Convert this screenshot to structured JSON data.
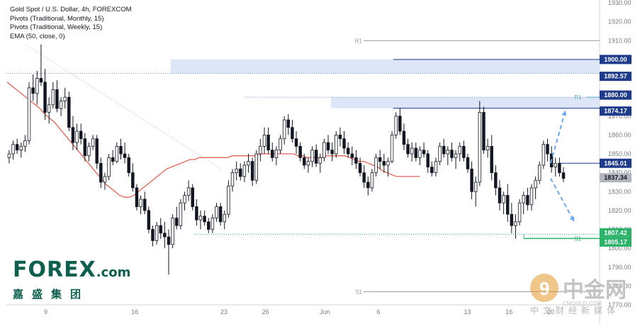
{
  "legend": {
    "symbol": "Gold Spot / U.S. Dollar, 4h, FOREXCOM",
    "pivots_monthly": "Pivots (Traditional, Monthly, 15)",
    "pivots_weekly": "Pivots (Traditional, Weekly, 15)",
    "ema": "EMA (50, close, 0)"
  },
  "logo": {
    "main": "FOREX",
    "suffix": ".com",
    "sub": "嘉盛集团"
  },
  "watermark": {
    "main": "中金网",
    "url": "CNGOLD.COM",
    "sub": "中文财经新媒体",
    "icon": "coin-icon"
  },
  "colors": {
    "up_candle": "#ffffff",
    "down_candle": "#131722",
    "ema": "#e0625a",
    "resistance": "#1e3a8a",
    "zone_fill": "#dde6f7",
    "support": "#2bb36a",
    "forecast_arrow": "#6ea8f0",
    "last_price": "#b2b5be",
    "pivot": "#9a9a9a"
  },
  "chart_data": {
    "type": "candlestick",
    "title": "Gold Spot / U.S. Dollar, 4h, FOREXCOM",
    "ylim": [
      1770,
      1930
    ],
    "y_ticks": [
      1930,
      1920,
      1910,
      1900,
      1890,
      1880,
      1870,
      1860,
      1850,
      1840,
      1830,
      1820,
      1810,
      1800,
      1790,
      1780,
      1770
    ],
    "x_tick_labels": [
      {
        "label": "9",
        "bar": 13
      },
      {
        "label": "16",
        "bar": 43
      },
      {
        "label": "23",
        "bar": 73
      },
      {
        "label": "26",
        "bar": 87
      },
      {
        "label": "Jun",
        "bar": 107
      },
      {
        "label": "6",
        "bar": 125
      },
      {
        "label": "13",
        "bar": 155
      },
      {
        "label": "16",
        "bar": 169
      },
      {
        "label": "20",
        "bar": 183
      }
    ],
    "bars_total": 200,
    "candles": [
      [
        1848,
        1852,
        1845,
        1850
      ],
      [
        1850,
        1857,
        1847,
        1855
      ],
      [
        1855,
        1858,
        1850,
        1852
      ],
      [
        1852,
        1856,
        1848,
        1854
      ],
      [
        1854,
        1860,
        1851,
        1857
      ],
      [
        1857,
        1888,
        1855,
        1885
      ],
      [
        1885,
        1892,
        1878,
        1882
      ],
      [
        1882,
        1894,
        1876,
        1890
      ],
      [
        1890,
        1908,
        1886,
        1888
      ],
      [
        1888,
        1895,
        1868,
        1872
      ],
      [
        1872,
        1880,
        1866,
        1876
      ],
      [
        1876,
        1888,
        1874,
        1884
      ],
      [
        1884,
        1889,
        1872,
        1874
      ],
      [
        1874,
        1880,
        1870,
        1878
      ],
      [
        1878,
        1885,
        1874,
        1880
      ],
      [
        1880,
        1883,
        1862,
        1864
      ],
      [
        1864,
        1870,
        1852,
        1856
      ],
      [
        1856,
        1866,
        1852,
        1862
      ],
      [
        1862,
        1866,
        1855,
        1858
      ],
      [
        1858,
        1861,
        1846,
        1849
      ],
      [
        1849,
        1856,
        1846,
        1854
      ],
      [
        1854,
        1860,
        1852,
        1858
      ],
      [
        1858,
        1860,
        1842,
        1845
      ],
      [
        1845,
        1848,
        1832,
        1835
      ],
      [
        1835,
        1840,
        1831,
        1838
      ],
      [
        1838,
        1850,
        1836,
        1848
      ],
      [
        1848,
        1852,
        1844,
        1846
      ],
      [
        1846,
        1856,
        1845,
        1854
      ],
      [
        1854,
        1858,
        1847,
        1850
      ],
      [
        1850,
        1856,
        1845,
        1848
      ],
      [
        1848,
        1850,
        1838,
        1840
      ],
      [
        1840,
        1845,
        1830,
        1832
      ],
      [
        1832,
        1834,
        1820,
        1822
      ],
      [
        1822,
        1828,
        1818,
        1826
      ],
      [
        1826,
        1830,
        1818,
        1820
      ],
      [
        1820,
        1822,
        1808,
        1810
      ],
      [
        1810,
        1812,
        1801,
        1804
      ],
      [
        1804,
        1814,
        1802,
        1812
      ],
      [
        1812,
        1816,
        1805,
        1808
      ],
      [
        1808,
        1814,
        1800,
        1806
      ],
      [
        1806,
        1810,
        1786,
        1802
      ],
      [
        1802,
        1818,
        1800,
        1816
      ],
      [
        1816,
        1822,
        1810,
        1812
      ],
      [
        1812,
        1826,
        1810,
        1824
      ],
      [
        1824,
        1830,
        1820,
        1828
      ],
      [
        1828,
        1836,
        1825,
        1832
      ],
      [
        1832,
        1834,
        1820,
        1822
      ],
      [
        1822,
        1826,
        1812,
        1815
      ],
      [
        1815,
        1820,
        1810,
        1817
      ],
      [
        1817,
        1820,
        1812,
        1814
      ],
      [
        1814,
        1816,
        1808,
        1810
      ],
      [
        1810,
        1818,
        1808,
        1816
      ],
      [
        1816,
        1824,
        1814,
        1822
      ],
      [
        1822,
        1824,
        1812,
        1814
      ],
      [
        1814,
        1820,
        1810,
        1818
      ],
      [
        1818,
        1836,
        1816,
        1833
      ],
      [
        1833,
        1842,
        1830,
        1840
      ],
      [
        1840,
        1846,
        1836,
        1842
      ],
      [
        1842,
        1845,
        1836,
        1838
      ],
      [
        1838,
        1846,
        1835,
        1844
      ],
      [
        1844,
        1850,
        1840,
        1846
      ],
      [
        1846,
        1848,
        1833,
        1836
      ],
      [
        1836,
        1852,
        1834,
        1850
      ],
      [
        1850,
        1858,
        1846,
        1854
      ],
      [
        1854,
        1864,
        1850,
        1860
      ],
      [
        1860,
        1864,
        1850,
        1852
      ],
      [
        1852,
        1856,
        1846,
        1848
      ],
      [
        1848,
        1854,
        1844,
        1852
      ],
      [
        1852,
        1860,
        1850,
        1858
      ],
      [
        1858,
        1870,
        1855,
        1868
      ],
      [
        1868,
        1871,
        1860,
        1864
      ],
      [
        1864,
        1868,
        1856,
        1858
      ],
      [
        1858,
        1862,
        1850,
        1854
      ],
      [
        1854,
        1856,
        1846,
        1848
      ],
      [
        1848,
        1850,
        1842,
        1844
      ],
      [
        1844,
        1848,
        1840,
        1846
      ],
      [
        1846,
        1854,
        1843,
        1852
      ],
      [
        1852,
        1855,
        1843,
        1845
      ],
      [
        1845,
        1850,
        1840,
        1848
      ],
      [
        1848,
        1858,
        1846,
        1856
      ],
      [
        1856,
        1860,
        1850,
        1852
      ],
      [
        1852,
        1856,
        1846,
        1850
      ],
      [
        1850,
        1862,
        1848,
        1860
      ],
      [
        1860,
        1864,
        1854,
        1858
      ],
      [
        1858,
        1862,
        1850,
        1853
      ],
      [
        1853,
        1856,
        1848,
        1850
      ],
      [
        1850,
        1854,
        1844,
        1848
      ],
      [
        1848,
        1852,
        1842,
        1845
      ],
      [
        1845,
        1848,
        1838,
        1840
      ],
      [
        1840,
        1844,
        1832,
        1835
      ],
      [
        1835,
        1838,
        1828,
        1832
      ],
      [
        1832,
        1842,
        1830,
        1840
      ],
      [
        1840,
        1850,
        1838,
        1848
      ],
      [
        1848,
        1852,
        1842,
        1846
      ],
      [
        1846,
        1850,
        1840,
        1844
      ],
      [
        1844,
        1848,
        1838,
        1846
      ],
      [
        1846,
        1862,
        1845,
        1860
      ],
      [
        1860,
        1872,
        1858,
        1870
      ],
      [
        1870,
        1874,
        1860,
        1862
      ],
      [
        1862,
        1866,
        1852,
        1855
      ],
      [
        1855,
        1858,
        1848,
        1850
      ],
      [
        1850,
        1856,
        1846,
        1853
      ],
      [
        1853,
        1856,
        1846,
        1848
      ],
      [
        1848,
        1854,
        1844,
        1852
      ],
      [
        1852,
        1856,
        1848,
        1850
      ],
      [
        1850,
        1852,
        1840,
        1843
      ],
      [
        1843,
        1846,
        1838,
        1840
      ],
      [
        1840,
        1848,
        1838,
        1846
      ],
      [
        1846,
        1856,
        1844,
        1854
      ],
      [
        1854,
        1858,
        1848,
        1850
      ],
      [
        1850,
        1854,
        1844,
        1852
      ],
      [
        1852,
        1856,
        1846,
        1848
      ],
      [
        1848,
        1852,
        1842,
        1850
      ],
      [
        1850,
        1856,
        1846,
        1854
      ],
      [
        1854,
        1857,
        1846,
        1848
      ],
      [
        1848,
        1850,
        1840,
        1842
      ],
      [
        1842,
        1846,
        1826,
        1830
      ],
      [
        1830,
        1838,
        1822,
        1835
      ],
      [
        1835,
        1878,
        1833,
        1872
      ],
      [
        1872,
        1875,
        1850,
        1852
      ],
      [
        1852,
        1858,
        1848,
        1854
      ],
      [
        1854,
        1860,
        1836,
        1840
      ],
      [
        1840,
        1844,
        1828,
        1832
      ],
      [
        1832,
        1836,
        1820,
        1824
      ],
      [
        1824,
        1830,
        1818,
        1828
      ],
      [
        1828,
        1834,
        1814,
        1818
      ],
      [
        1818,
        1824,
        1808,
        1812
      ],
      [
        1812,
        1818,
        1805,
        1814
      ],
      [
        1814,
        1826,
        1812,
        1824
      ],
      [
        1824,
        1830,
        1818,
        1828
      ],
      [
        1828,
        1832,
        1820,
        1823
      ],
      [
        1823,
        1834,
        1820,
        1832
      ],
      [
        1832,
        1838,
        1826,
        1836
      ],
      [
        1836,
        1846,
        1834,
        1844
      ],
      [
        1844,
        1857,
        1842,
        1855
      ],
      [
        1855,
        1858,
        1846,
        1850
      ],
      [
        1850,
        1854,
        1840,
        1843
      ],
      [
        1843,
        1848,
        1838,
        1845
      ],
      [
        1845,
        1848,
        1838,
        1840
      ],
      [
        1840,
        1843,
        1835,
        1837
      ]
    ],
    "ema_50": [
      1888,
      1886,
      1884,
      1882,
      1880,
      1878,
      1876,
      1874,
      1871,
      1869,
      1867,
      1864,
      1861,
      1858,
      1855,
      1852,
      1849,
      1846,
      1843,
      1840,
      1837,
      1834,
      1832,
      1830,
      1828,
      1827,
      1827,
      1828,
      1830,
      1832,
      1834,
      1836,
      1838,
      1840,
      1842,
      1843,
      1844,
      1845,
      1846,
      1847,
      1847,
      1848,
      1848,
      1848,
      1848,
      1848,
      1848,
      1848,
      1849,
      1849,
      1849,
      1849,
      1849,
      1849,
      1850,
      1850,
      1850,
      1850,
      1850,
      1850,
      1850,
      1850,
      1849,
      1849,
      1848,
      1848,
      1848,
      1848,
      1849,
      1849,
      1849,
      1849,
      1849,
      1848,
      1847,
      1846,
      1846,
      1845,
      1844,
      1843,
      1841,
      1840,
      1839,
      1838,
      1838,
      1838,
      1838,
      1838,
      1838
    ],
    "levels": [
      {
        "name": "R1",
        "value": 1910,
        "source": "monthly pivot",
        "label": "R1"
      },
      {
        "name": "resistance",
        "value": 1900.0,
        "label": "1900.00"
      },
      {
        "name": "resistance",
        "value": 1892.57,
        "label": "1892.57"
      },
      {
        "name": "resistance",
        "value": 1880.0,
        "label": "1880.00"
      },
      {
        "name": "R1",
        "value": 1880,
        "source": "weekly pivot",
        "label": "R1"
      },
      {
        "name": "resistance",
        "value": 1874.17,
        "label": "1874.17"
      },
      {
        "name": "resistance",
        "value": 1845.01,
        "label": "1845.01"
      },
      {
        "name": "last_price",
        "value": 1837.34,
        "label": "1837.34"
      },
      {
        "name": "support",
        "value": 1807.42,
        "label": "1807.42"
      },
      {
        "name": "support",
        "value": 1805.17,
        "label": "1805.17"
      },
      {
        "name": "S1",
        "value": 1805.17,
        "source": "weekly pivot",
        "label": "S1"
      },
      {
        "name": "S1",
        "value": 1777,
        "source": "monthly pivot",
        "label": "S1"
      }
    ],
    "zones": [
      {
        "from": 1892.57,
        "to": 1900.0,
        "start_bar": 55
      },
      {
        "from": 1874.17,
        "to": 1880.0,
        "start_bar": 109
      }
    ],
    "forecast_paths": [
      {
        "from_bar": 183,
        "from_value": 1845,
        "to_bar": 188,
        "to_value": 1873
      },
      {
        "from_bar": 183,
        "from_value": 1837,
        "to_bar": 191,
        "to_value": 1814
      }
    ]
  }
}
